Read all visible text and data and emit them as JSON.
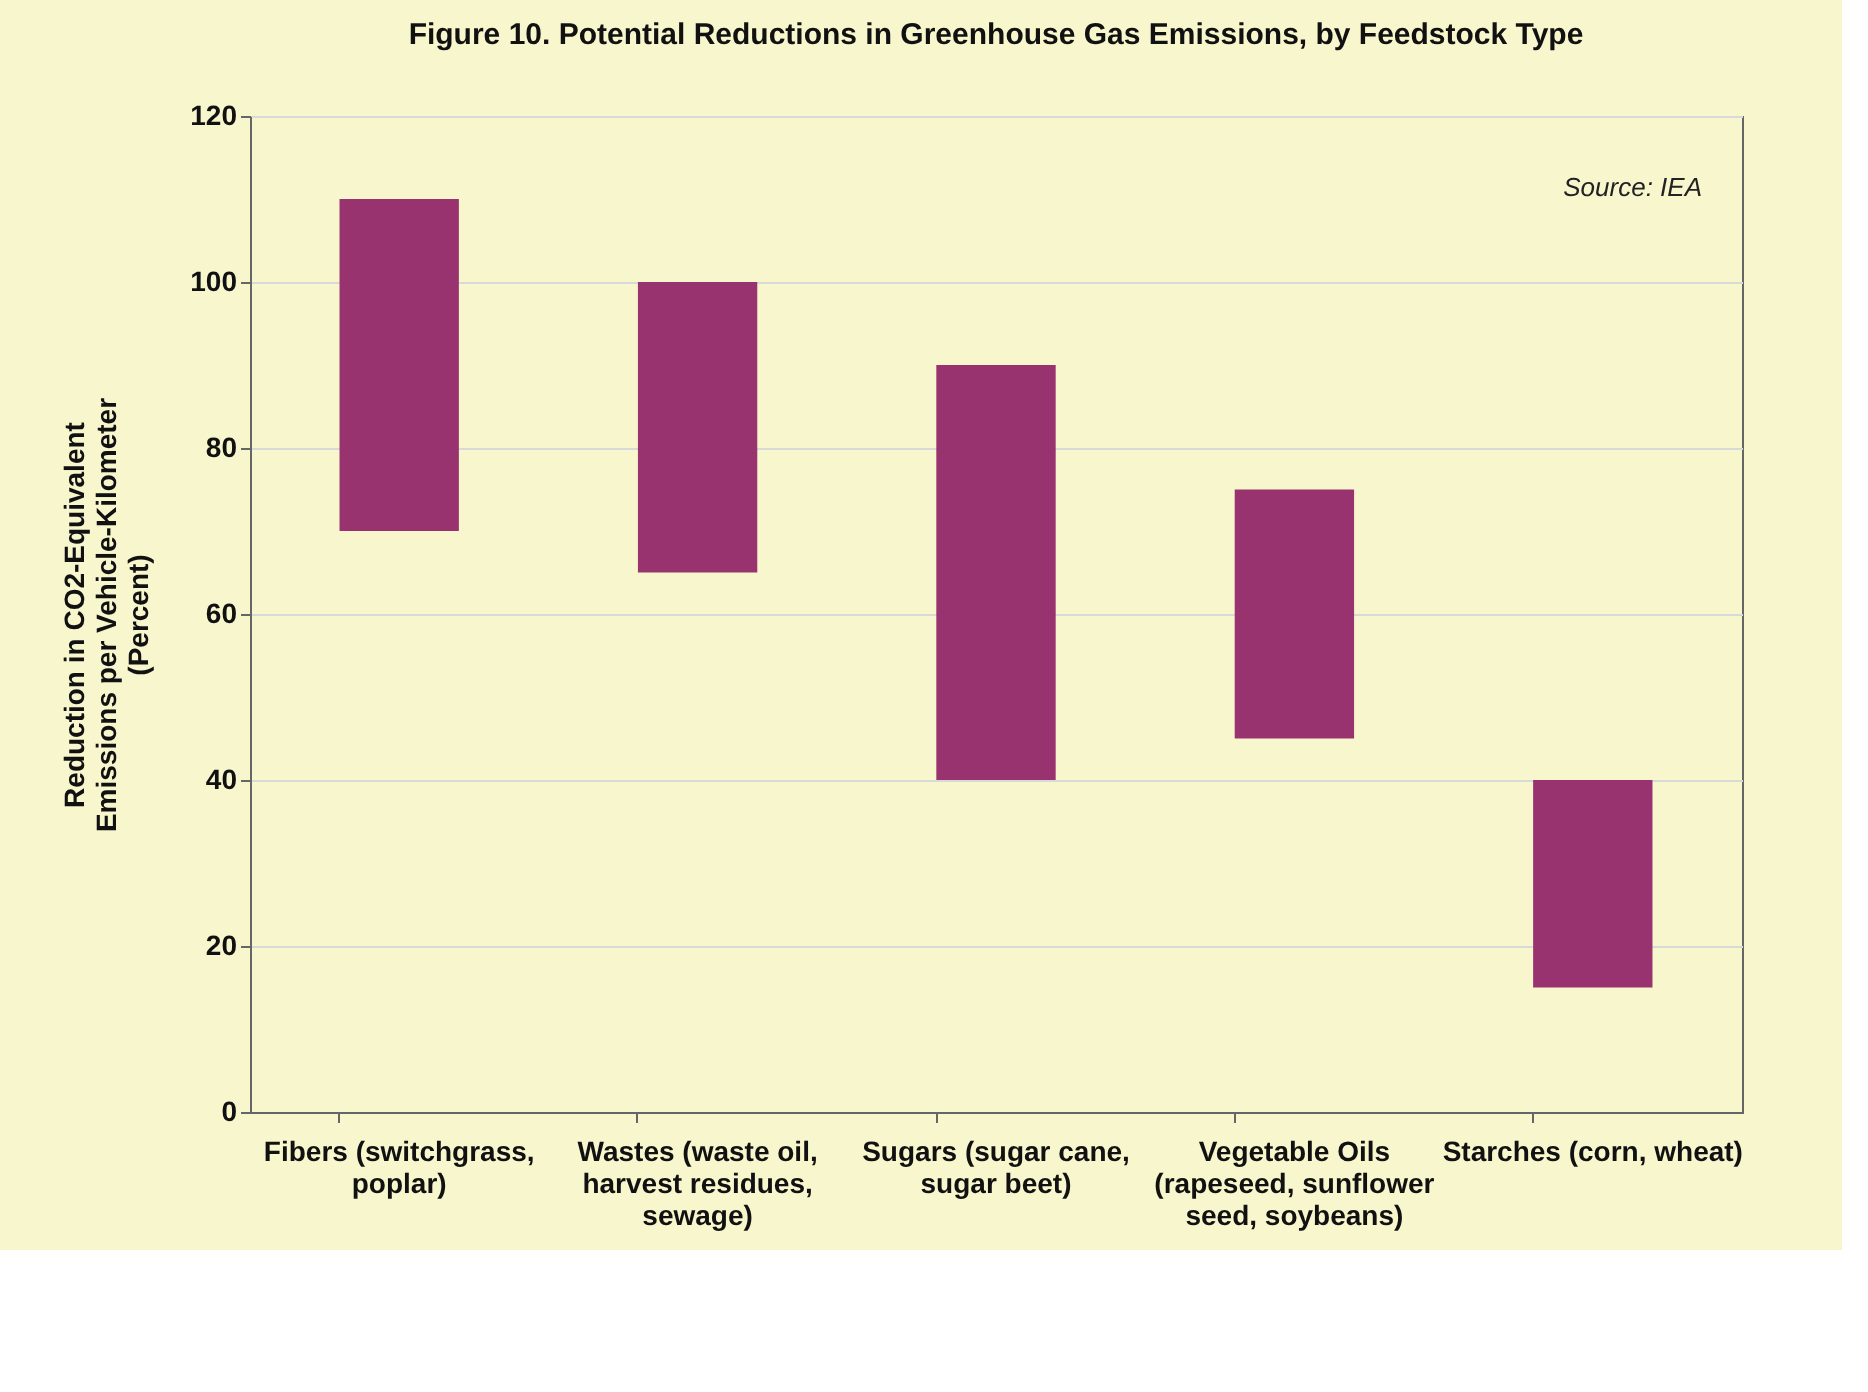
{
  "chart_data": {
    "type": "bar",
    "title": "Figure 10. Potential Reductions in Greenhouse Gas Emissions, by Feedstock Type",
    "ylabel": "Reduction in CO2-Equivalent Emissions per Vehicle-Kilometer (Percent)",
    "categories": [
      "Fibers (switchgrass, poplar)",
      "Wastes (waste oil, harvest residues, sewage)",
      "Sugars (sugar cane, sugar beet)",
      "Vegetable Oils (rapeseed, sunflower seed, soybeans)",
      "Starches (corn, wheat)"
    ],
    "base": [
      70,
      65,
      40,
      45,
      15
    ],
    "values": [
      40,
      35,
      50,
      30,
      25
    ],
    "color": "#993370",
    "ylim": [
      0,
      120
    ],
    "yticks": [
      0,
      20,
      40,
      60,
      80,
      100,
      120
    ],
    "grid": "y",
    "annotations": [
      "Source:  IEA"
    ]
  }
}
